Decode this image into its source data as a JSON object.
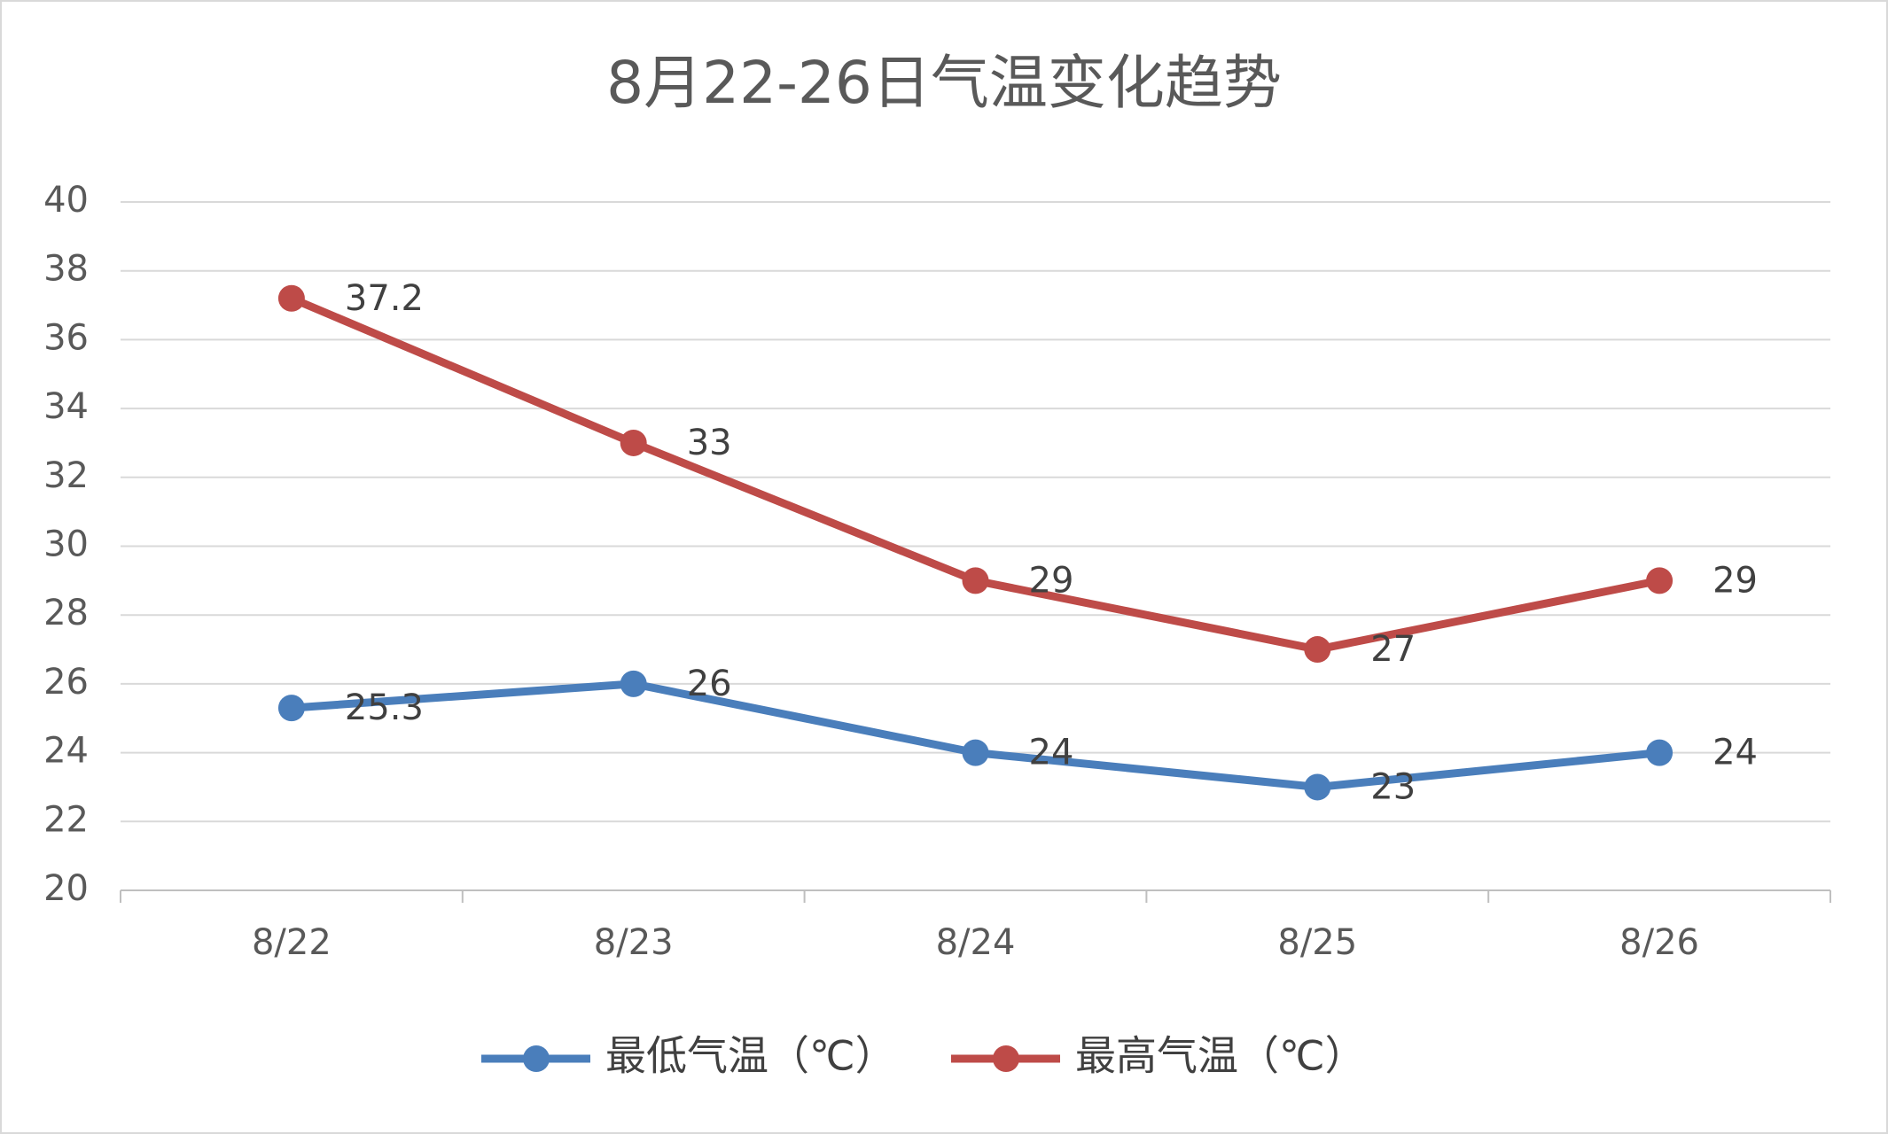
{
  "chart_data": {
    "type": "line",
    "title": "8月22-26日气温变化趋势",
    "categories": [
      "8/22",
      "8/23",
      "8/24",
      "8/25",
      "8/26"
    ],
    "series": [
      {
        "name": "最低气温（℃）",
        "color": "#4a7ebb",
        "values": [
          25.3,
          26,
          24,
          23,
          24
        ]
      },
      {
        "name": "最高气温（℃）",
        "color": "#be4b48",
        "values": [
          37.2,
          33,
          29,
          27,
          29
        ]
      }
    ],
    "ylim": [
      20,
      40
    ],
    "yticks": [
      20,
      22,
      24,
      26,
      28,
      30,
      32,
      34,
      36,
      38,
      40
    ],
    "grid": true,
    "legend": "bottom"
  }
}
